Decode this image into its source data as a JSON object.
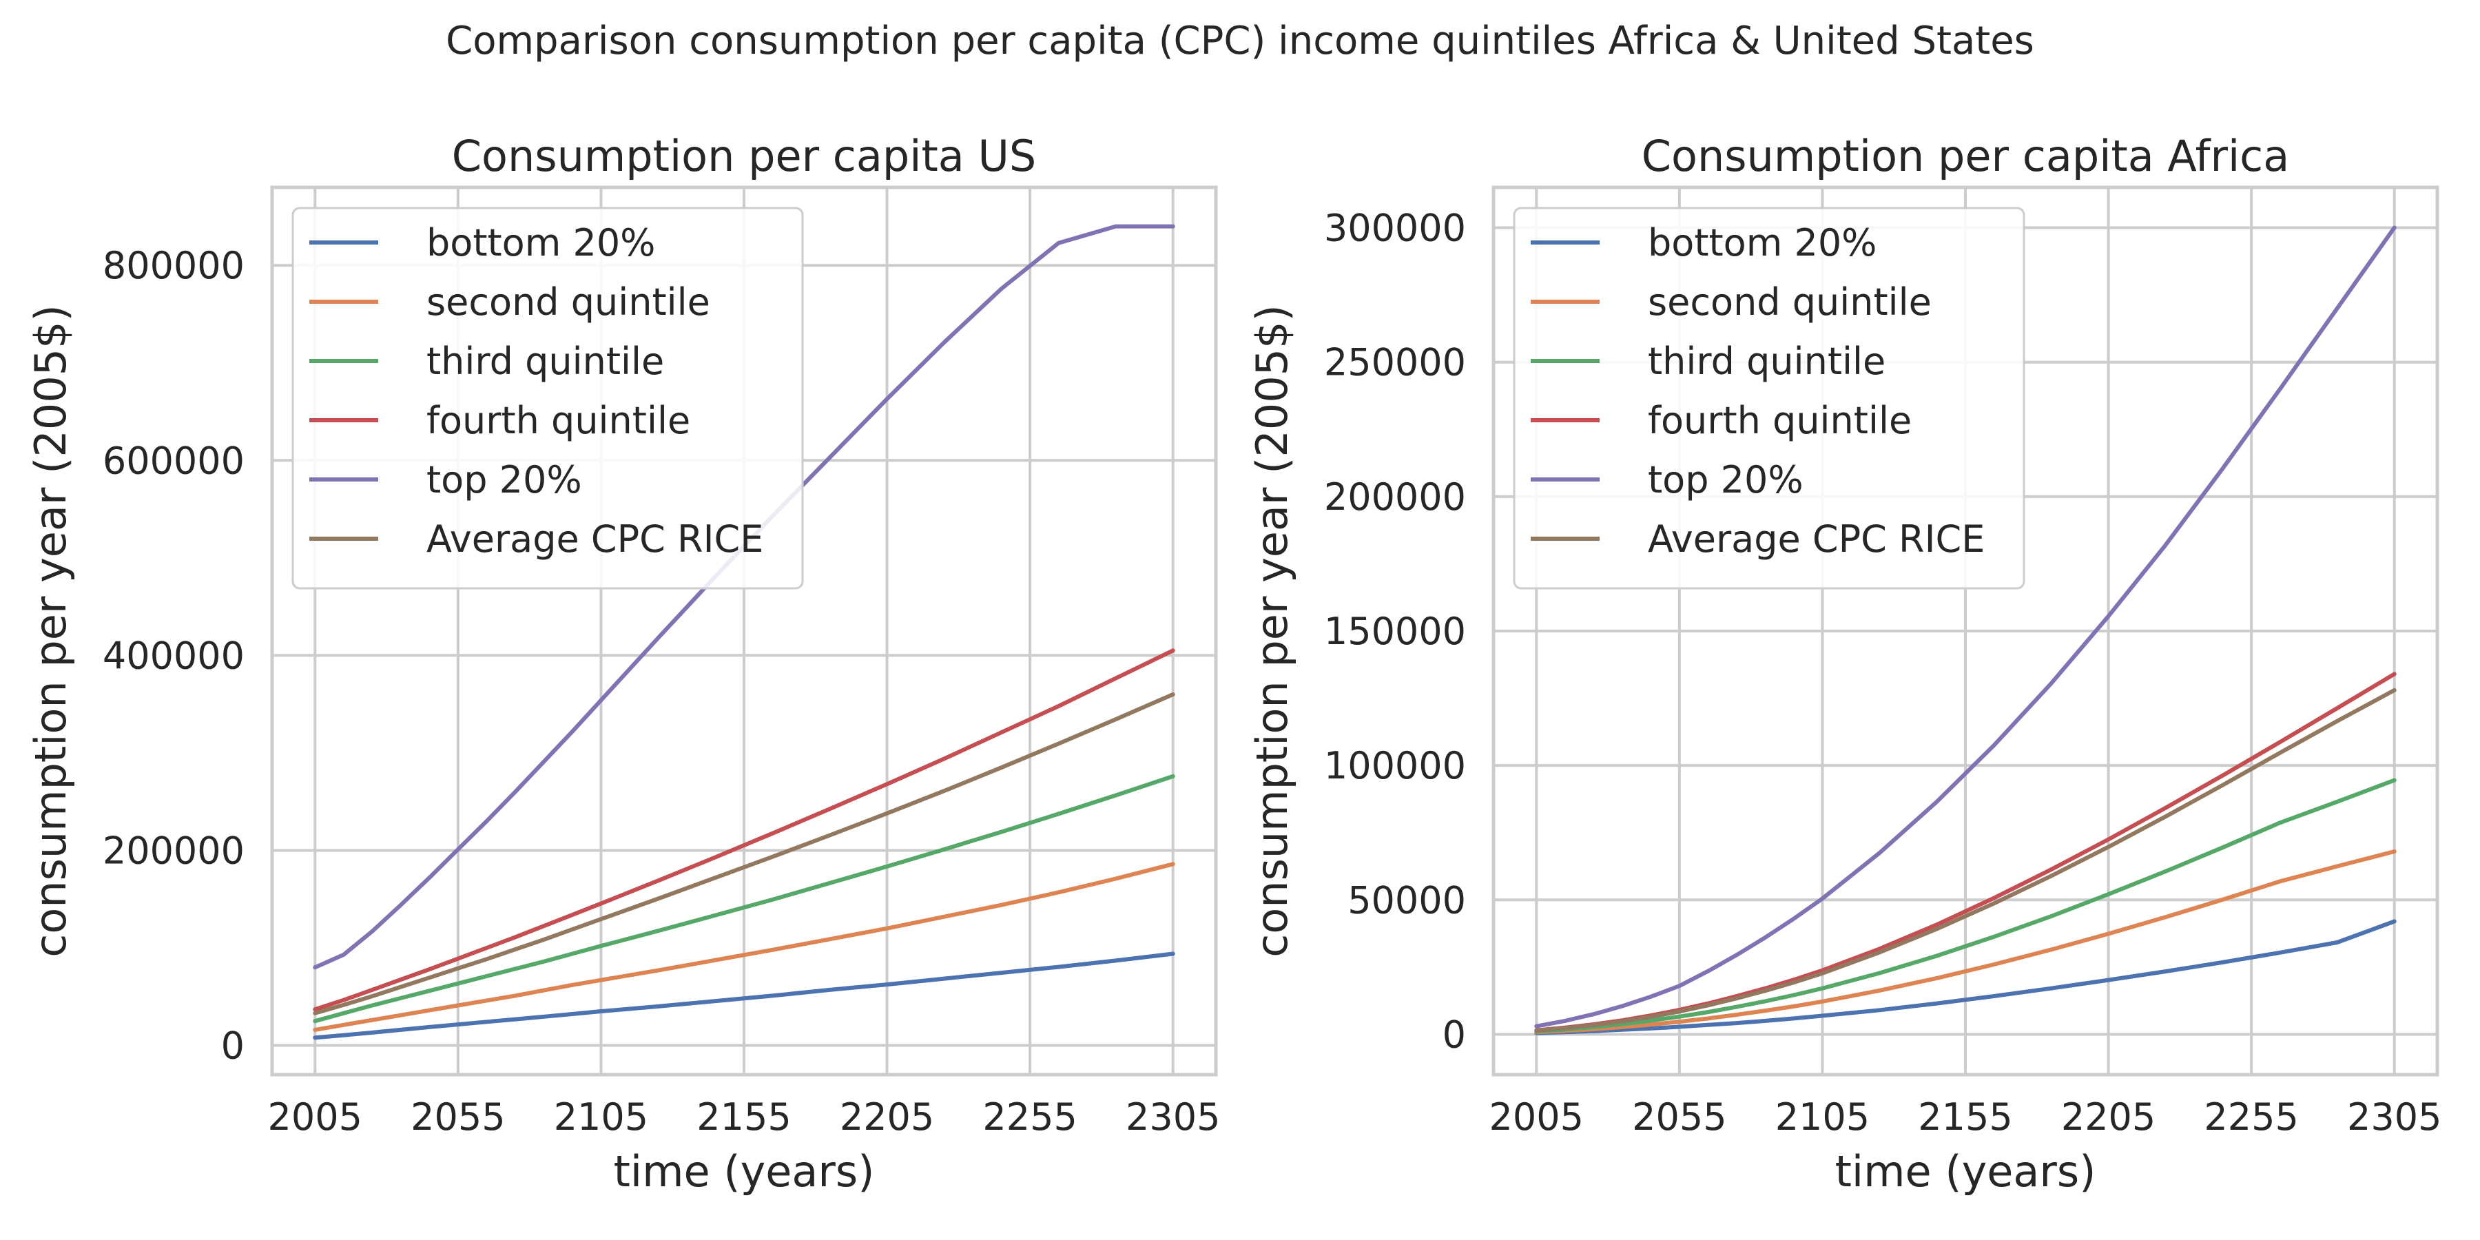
{
  "figure": {
    "title": "Comparison consumption per capita (CPC) income quintiles Africa & United States"
  },
  "colors": {
    "bottom": "#4c72b0",
    "second": "#dd8452",
    "third": "#55a868",
    "fourth": "#c44e52",
    "top": "#8172b3",
    "average": "#937860"
  },
  "chart_data": [
    {
      "type": "line",
      "title": "Consumption per capita US",
      "xlabel": "time (years)",
      "ylabel": "consumption per year (2005$)",
      "xlim": [
        1990,
        2320
      ],
      "ylim": [
        -30000,
        880000
      ],
      "xticks": [
        2005,
        2055,
        2105,
        2155,
        2205,
        2255,
        2305
      ],
      "yticks": [
        0,
        200000,
        400000,
        600000,
        800000
      ],
      "grid": true,
      "legend": "top-left",
      "x": [
        2005,
        2015,
        2025,
        2035,
        2045,
        2055,
        2065,
        2075,
        2085,
        2095,
        2105,
        2125,
        2145,
        2165,
        2185,
        2205,
        2225,
        2245,
        2265,
        2285,
        2305
      ],
      "series": [
        {
          "name": "bottom 20%",
          "color_key": "bottom",
          "values": [
            8000,
            10500,
            13200,
            16000,
            18800,
            21500,
            24200,
            26800,
            29500,
            32200,
            35000,
            40000,
            45500,
            51000,
            57000,
            62500,
            68500,
            74500,
            80500,
            87000,
            94000
          ]
        },
        {
          "name": "second quintile",
          "color_key": "second",
          "values": [
            16000,
            21000,
            26000,
            31000,
            36000,
            41000,
            46000,
            51000,
            56500,
            62000,
            67000,
            77000,
            87500,
            98000,
            109000,
            120000,
            132000,
            144000,
            157000,
            171000,
            186000
          ]
        },
        {
          "name": "third quintile",
          "color_key": "third",
          "values": [
            25000,
            33000,
            41000,
            48500,
            56000,
            63500,
            71000,
            78500,
            86000,
            94000,
            102000,
            117500,
            133500,
            149500,
            166500,
            183500,
            201000,
            219000,
            237500,
            256500,
            276000
          ]
        },
        {
          "name": "fourth quintile",
          "color_key": "fourth",
          "values": [
            37000,
            46500,
            57000,
            67500,
            78000,
            89000,
            100000,
            111000,
            122500,
            134000,
            145500,
            169000,
            193000,
            217500,
            242500,
            268000,
            294000,
            321000,
            348000,
            376500,
            405000
          ]
        },
        {
          "name": "top 20%",
          "color_key": "top",
          "values": [
            80000,
            93000,
            117000,
            144000,
            172000,
            201000,
            230000,
            260000,
            291000,
            322000,
            354000,
            418000,
            481000,
            543000,
            603000,
            663000,
            721000,
            776000,
            823000,
            840000,
            840000
          ]
        },
        {
          "name": "Average CPC RICE",
          "color_key": "average",
          "values": [
            33000,
            41500,
            50500,
            60000,
            69500,
            79000,
            88500,
            98500,
            108500,
            119000,
            129500,
            150500,
            172000,
            193500,
            215500,
            238000,
            261000,
            285000,
            309500,
            334500,
            360000
          ]
        }
      ]
    },
    {
      "type": "line",
      "title": "Consumption per capita Africa",
      "xlabel": "time (years)",
      "ylabel": "consumption per year (2005$)",
      "xlim": [
        1990,
        2320
      ],
      "ylim": [
        -15000,
        315000
      ],
      "xticks": [
        2005,
        2055,
        2105,
        2155,
        2205,
        2255,
        2305
      ],
      "yticks": [
        0,
        50000,
        100000,
        150000,
        200000,
        250000,
        300000
      ],
      "grid": true,
      "legend": "top-left",
      "x": [
        2005,
        2015,
        2025,
        2035,
        2045,
        2055,
        2065,
        2075,
        2085,
        2095,
        2105,
        2125,
        2145,
        2165,
        2185,
        2205,
        2225,
        2245,
        2265,
        2285,
        2305
      ],
      "series": [
        {
          "name": "bottom 20%",
          "color_key": "bottom",
          "values": [
            500,
            800,
            1200,
            1700,
            2200,
            2800,
            3500,
            4200,
            5000,
            5900,
            6900,
            9000,
            11500,
            14200,
            17100,
            20200,
            23400,
            26800,
            30400,
            34200,
            42000
          ]
        },
        {
          "name": "second quintile",
          "color_key": "second",
          "values": [
            800,
            1300,
            1900,
            2700,
            3600,
            4700,
            5900,
            7300,
            8800,
            10400,
            12200,
            16300,
            20900,
            26000,
            31500,
            37400,
            43600,
            50100,
            56900,
            62500,
            68000
          ]
        },
        {
          "name": "third quintile",
          "color_key": "third",
          "values": [
            1100,
            1800,
            2700,
            3800,
            5100,
            6600,
            8300,
            10200,
            12300,
            14600,
            17100,
            22800,
            29200,
            36300,
            43900,
            52100,
            60600,
            69500,
            78700,
            86500,
            94500
          ]
        },
        {
          "name": "fourth quintile",
          "color_key": "fourth",
          "values": [
            1500,
            2500,
            3700,
            5200,
            7000,
            9100,
            11500,
            14200,
            17100,
            20300,
            23800,
            31800,
            40800,
            50700,
            61300,
            72500,
            84200,
            96300,
            108700,
            121300,
            134000
          ]
        },
        {
          "name": "top 20%",
          "color_key": "top",
          "values": [
            3000,
            5000,
            7500,
            10500,
            14000,
            18000,
            23500,
            29500,
            36000,
            43000,
            50500,
            67500,
            86500,
            107500,
            130500,
            155500,
            182000,
            210500,
            240000,
            270000,
            300000
          ]
        },
        {
          "name": "Average CPC RICE",
          "color_key": "average",
          "values": [
            1400,
            2300,
            3400,
            4800,
            6500,
            8500,
            10800,
            13400,
            16200,
            19300,
            22700,
            30500,
            39200,
            48700,
            58900,
            69700,
            81000,
            92700,
            104700,
            116500,
            128000
          ]
        }
      ]
    }
  ]
}
